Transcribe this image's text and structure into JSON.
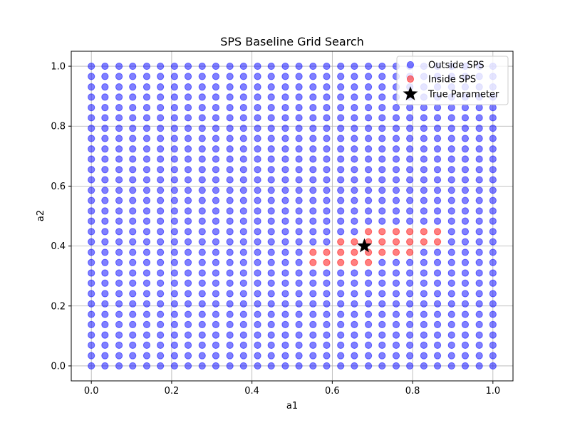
{
  "chart_data": {
    "type": "scatter",
    "title": "SPS Baseline Grid Search",
    "xlabel": "a1",
    "ylabel": "a2",
    "xlim": [
      -0.05,
      1.05
    ],
    "ylim": [
      -0.05,
      1.05
    ],
    "grid": true,
    "legend_position": "top-right",
    "xticks": [
      "0.0",
      "0.2",
      "0.4",
      "0.6",
      "0.8",
      "1.0"
    ],
    "yticks": [
      "0.0",
      "0.2",
      "0.4",
      "0.6",
      "0.8",
      "1.0"
    ],
    "grid_values": [
      0.0,
      0.034,
      0.069,
      0.103,
      0.138,
      0.172,
      0.207,
      0.241,
      0.276,
      0.31,
      0.345,
      0.379,
      0.414,
      0.448,
      0.483,
      0.517,
      0.552,
      0.586,
      0.621,
      0.655,
      0.69,
      0.724,
      0.759,
      0.793,
      0.828,
      0.862,
      0.897,
      0.931,
      0.966,
      1.0
    ],
    "series": [
      {
        "name": "Outside SPS",
        "color": "#0000ff",
        "marker": "circle",
        "points": "all grid points (a1, a2) not listed in Inside SPS"
      },
      {
        "name": "Inside SPS",
        "color": "#ff0000",
        "marker": "circle",
        "points": [
          [
            0.69,
            0.448
          ],
          [
            0.724,
            0.448
          ],
          [
            0.759,
            0.448
          ],
          [
            0.793,
            0.448
          ],
          [
            0.828,
            0.448
          ],
          [
            0.862,
            0.448
          ],
          [
            0.621,
            0.414
          ],
          [
            0.655,
            0.414
          ],
          [
            0.69,
            0.414
          ],
          [
            0.724,
            0.414
          ],
          [
            0.759,
            0.414
          ],
          [
            0.793,
            0.414
          ],
          [
            0.828,
            0.414
          ],
          [
            0.862,
            0.414
          ],
          [
            0.552,
            0.379
          ],
          [
            0.586,
            0.379
          ],
          [
            0.621,
            0.379
          ],
          [
            0.655,
            0.379
          ],
          [
            0.69,
            0.379
          ],
          [
            0.724,
            0.379
          ],
          [
            0.759,
            0.379
          ],
          [
            0.793,
            0.379
          ],
          [
            0.552,
            0.345
          ],
          [
            0.586,
            0.345
          ],
          [
            0.621,
            0.345
          ],
          [
            0.655,
            0.345
          ],
          [
            0.69,
            0.345
          ]
        ]
      },
      {
        "name": "True Parameter",
        "color": "#000000",
        "marker": "star",
        "points": [
          [
            0.68,
            0.4
          ]
        ]
      }
    ]
  }
}
